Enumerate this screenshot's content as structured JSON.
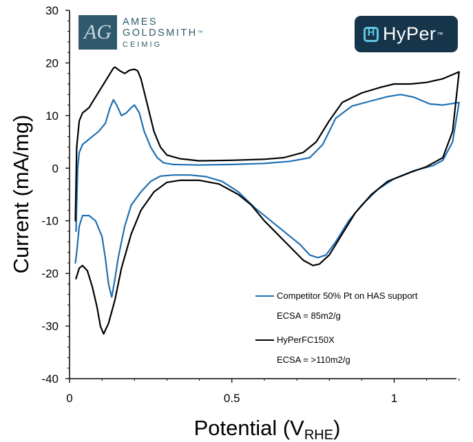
{
  "logos": {
    "ames_badge": "AG",
    "ames_line1": "AMES",
    "ames_line2": "GOLDSMITH",
    "ames_tm": "™",
    "ames_line3": "CEIMIG",
    "hyper_text": "HyPer",
    "hyper_tm": "™",
    "hyper_icon": "hyper-h-icon",
    "ames_color": "#2f5a6e",
    "hyper_bg": "#17354a",
    "hyper_accent": "#5fc8e6"
  },
  "chart_data": {
    "type": "line",
    "title": "",
    "xlabel_main": "Potential (V",
    "xlabel_sub": "RHE",
    "xlabel_close": ")",
    "ylabel": "Current (mA/mg)",
    "xlim": [
      0,
      1.2
    ],
    "ylim": [
      -40,
      30
    ],
    "x_ticks": [
      0,
      0.5,
      1
    ],
    "x_tick_labels": [
      "0",
      "0.5",
      "1"
    ],
    "y_ticks": [
      -40,
      -30,
      -20,
      -10,
      0,
      10,
      20,
      30
    ],
    "y_tick_labels": [
      "-40",
      "-30",
      "-20",
      "-10",
      "0",
      "10",
      "20",
      "30"
    ],
    "grid": false,
    "legend_position": "bottom-right",
    "legend_notes": [
      "ECSA = 85m2/g",
      "ECSA = >110m2/g"
    ],
    "series": [
      {
        "name": "Competitor 50% Pt on HAS support",
        "color": "#1f6fb2",
        "points": [
          [
            0.02,
            -12
          ],
          [
            0.025,
            0
          ],
          [
            0.03,
            3
          ],
          [
            0.04,
            4.5
          ],
          [
            0.06,
            5.5
          ],
          [
            0.09,
            7
          ],
          [
            0.11,
            8.5
          ],
          [
            0.125,
            11.5
          ],
          [
            0.135,
            13
          ],
          [
            0.145,
            12
          ],
          [
            0.16,
            10
          ],
          [
            0.175,
            10.5
          ],
          [
            0.19,
            11.5
          ],
          [
            0.2,
            12
          ],
          [
            0.215,
            10.5
          ],
          [
            0.23,
            7
          ],
          [
            0.25,
            4
          ],
          [
            0.27,
            2
          ],
          [
            0.29,
            1
          ],
          [
            0.32,
            0.7
          ],
          [
            0.4,
            0.6
          ],
          [
            0.5,
            0.7
          ],
          [
            0.6,
            0.9
          ],
          [
            0.68,
            1.3
          ],
          [
            0.74,
            2
          ],
          [
            0.78,
            4.5
          ],
          [
            0.82,
            9.5
          ],
          [
            0.87,
            11.8
          ],
          [
            0.93,
            12.8
          ],
          [
            0.98,
            13.6
          ],
          [
            1.02,
            14
          ],
          [
            1.06,
            13.5
          ],
          [
            1.11,
            12.2
          ],
          [
            1.15,
            12
          ],
          [
            1.2,
            12.5
          ],
          [
            1.2,
            12.5
          ],
          [
            1.18,
            5
          ],
          [
            1.15,
            1.5
          ],
          [
            1.12,
            0.5
          ],
          [
            1.06,
            -0.5
          ],
          [
            1.0,
            -2
          ],
          [
            0.95,
            -4
          ],
          [
            0.9,
            -7
          ],
          [
            0.86,
            -10
          ],
          [
            0.82,
            -14
          ],
          [
            0.79,
            -16.5
          ],
          [
            0.765,
            -17
          ],
          [
            0.74,
            -16.5
          ],
          [
            0.71,
            -14.5
          ],
          [
            0.67,
            -12.5
          ],
          [
            0.62,
            -10
          ],
          [
            0.57,
            -7.5
          ],
          [
            0.52,
            -4.5
          ],
          [
            0.47,
            -2.5
          ],
          [
            0.42,
            -1.6
          ],
          [
            0.37,
            -1.3
          ],
          [
            0.32,
            -1.3
          ],
          [
            0.28,
            -1.5
          ],
          [
            0.25,
            -2.5
          ],
          [
            0.22,
            -4.5
          ],
          [
            0.19,
            -7
          ],
          [
            0.17,
            -11
          ],
          [
            0.15,
            -17
          ],
          [
            0.14,
            -21
          ],
          [
            0.13,
            -24.5
          ],
          [
            0.12,
            -22
          ],
          [
            0.11,
            -17
          ],
          [
            0.1,
            -13
          ],
          [
            0.08,
            -10
          ],
          [
            0.06,
            -9
          ],
          [
            0.04,
            -9
          ],
          [
            0.03,
            -11
          ],
          [
            0.022,
            -16
          ],
          [
            0.018,
            -18
          ]
        ]
      },
      {
        "name": "HyPerFC150X",
        "color": "#000000",
        "points": [
          [
            0.018,
            -10
          ],
          [
            0.022,
            4
          ],
          [
            0.03,
            9
          ],
          [
            0.04,
            10.5
          ],
          [
            0.06,
            11.5
          ],
          [
            0.08,
            13.5
          ],
          [
            0.1,
            15.5
          ],
          [
            0.12,
            17.5
          ],
          [
            0.135,
            19
          ],
          [
            0.14,
            19.2
          ],
          [
            0.155,
            18.5
          ],
          [
            0.17,
            18
          ],
          [
            0.185,
            18.6
          ],
          [
            0.2,
            18.8
          ],
          [
            0.21,
            18.5
          ],
          [
            0.22,
            17
          ],
          [
            0.24,
            12
          ],
          [
            0.26,
            7
          ],
          [
            0.28,
            4
          ],
          [
            0.3,
            2.5
          ],
          [
            0.34,
            1.8
          ],
          [
            0.4,
            1.4
          ],
          [
            0.5,
            1.5
          ],
          [
            0.6,
            1.7
          ],
          [
            0.66,
            2
          ],
          [
            0.72,
            3
          ],
          [
            0.76,
            5
          ],
          [
            0.8,
            9
          ],
          [
            0.84,
            12.5
          ],
          [
            0.9,
            14.3
          ],
          [
            0.96,
            15.4
          ],
          [
            1.0,
            16
          ],
          [
            1.05,
            16
          ],
          [
            1.1,
            16.3
          ],
          [
            1.15,
            17
          ],
          [
            1.2,
            18.3
          ],
          [
            1.2,
            18.3
          ],
          [
            1.18,
            7
          ],
          [
            1.15,
            2
          ],
          [
            1.1,
            0.3
          ],
          [
            1.05,
            -0.8
          ],
          [
            0.98,
            -2.5
          ],
          [
            0.93,
            -5
          ],
          [
            0.88,
            -8.5
          ],
          [
            0.84,
            -12.5
          ],
          [
            0.8,
            -16.5
          ],
          [
            0.77,
            -18.2
          ],
          [
            0.75,
            -18.5
          ],
          [
            0.72,
            -17.5
          ],
          [
            0.68,
            -15
          ],
          [
            0.64,
            -12.5
          ],
          [
            0.6,
            -10
          ],
          [
            0.56,
            -7
          ],
          [
            0.52,
            -5
          ],
          [
            0.46,
            -3
          ],
          [
            0.4,
            -2.3
          ],
          [
            0.34,
            -2.3
          ],
          [
            0.3,
            -2.7
          ],
          [
            0.26,
            -4.5
          ],
          [
            0.22,
            -8
          ],
          [
            0.19,
            -12.5
          ],
          [
            0.16,
            -19
          ],
          [
            0.14,
            -25
          ],
          [
            0.12,
            -29.5
          ],
          [
            0.105,
            -31.5
          ],
          [
            0.095,
            -30
          ],
          [
            0.085,
            -26.5
          ],
          [
            0.07,
            -22.5
          ],
          [
            0.055,
            -19.5
          ],
          [
            0.04,
            -18.5
          ],
          [
            0.03,
            -19
          ],
          [
            0.02,
            -21
          ]
        ]
      }
    ]
  }
}
